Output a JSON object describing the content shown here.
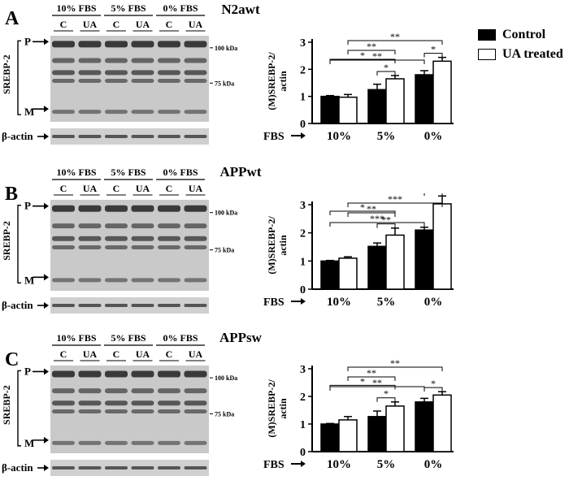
{
  "legend": {
    "items": [
      {
        "label": "Control",
        "color": "#000000"
      },
      {
        "label": "UA treated",
        "color": "#ffffff"
      }
    ]
  },
  "panels": [
    {
      "letter": "A",
      "title": "N2awt",
      "blot": {
        "conditions": [
          "10% FBS",
          "5% FBS",
          "0% FBS"
        ],
        "lanes": [
          "C",
          "UA",
          "C",
          "UA",
          "C",
          "UA"
        ],
        "protein_label": "SREBP-2",
        "band_p": "P",
        "band_m": "M",
        "marker_100": "100 kDa",
        "marker_75": "75 kDa",
        "loading_label": "β-actin"
      },
      "chart": {
        "ylabel_line1": "(M)SREBP-2/",
        "ylabel_line2": "actin",
        "xaxis_label": "FBS",
        "yticks": [
          "0",
          "1",
          "2",
          "3"
        ]
      }
    },
    {
      "letter": "B",
      "title": "APPwt",
      "blot": {
        "conditions": [
          "10% FBS",
          "5% FBS",
          "0% FBS"
        ],
        "lanes": [
          "C",
          "UA",
          "C",
          "UA",
          "C",
          "UA"
        ],
        "protein_label": "SREBP-2",
        "band_p": "P",
        "band_m": "M",
        "marker_100": "100 kDa",
        "marker_75": "75 kDa",
        "loading_label": "β-actin"
      },
      "chart": {
        "ylabel_line1": "(M)SREBP-2/",
        "ylabel_line2": "actin",
        "xaxis_label": "FBS",
        "yticks": [
          "0",
          "1",
          "2",
          "3"
        ]
      }
    },
    {
      "letter": "C",
      "title": "APPsw",
      "blot": {
        "conditions": [
          "10% FBS",
          "5% FBS",
          "0% FBS"
        ],
        "lanes": [
          "C",
          "UA",
          "C",
          "UA",
          "C",
          "UA"
        ],
        "protein_label": "SREBP-2",
        "band_p": "P",
        "band_m": "M",
        "marker_100": "100 kDa",
        "marker_75": "75 kDa",
        "loading_label": "β-actin"
      },
      "chart": {
        "ylabel_line1": "(M)SREBP-2/",
        "ylabel_line2": "actin",
        "xaxis_label": "FBS",
        "yticks": [
          "0",
          "1",
          "2",
          "3"
        ]
      }
    }
  ],
  "chart_data": [
    {
      "type": "bar",
      "title": "N2awt",
      "xlabel": "FBS",
      "ylabel": "(M)SREBP-2/ actin",
      "categories": [
        "10%",
        "5%",
        "0%"
      ],
      "ylim": [
        0,
        3
      ],
      "series": [
        {
          "name": "Control",
          "values": [
            1.0,
            1.25,
            1.8
          ],
          "errors": [
            0.03,
            0.2,
            0.15
          ]
        },
        {
          "name": "UA treated",
          "values": [
            0.97,
            1.65,
            2.3
          ],
          "errors": [
            0.1,
            0.12,
            0.14
          ]
        }
      ],
      "significance": [
        {
          "label": "*",
          "from": [
            0,
            0
          ],
          "to": [
            1,
            1
          ]
        },
        {
          "label": "*",
          "from": [
            1,
            0
          ],
          "to": [
            1,
            1
          ]
        },
        {
          "label": "*",
          "from": [
            2,
            0
          ],
          "to": [
            2,
            1
          ]
        },
        {
          "label": "**",
          "from": [
            0,
            0
          ],
          "to": [
            2,
            0
          ]
        },
        {
          "label": "**",
          "from": [
            0,
            1
          ],
          "to": [
            1,
            1
          ]
        },
        {
          "label": "**",
          "from": [
            0,
            1
          ],
          "to": [
            2,
            1
          ]
        }
      ]
    },
    {
      "type": "bar",
      "title": "APPwt",
      "xlabel": "FBS",
      "ylabel": "(M)SREBP-2/ actin",
      "categories": [
        "10%",
        "5%",
        "0%"
      ],
      "ylim": [
        0,
        3
      ],
      "series": [
        {
          "name": "Control",
          "values": [
            1.0,
            1.52,
            2.1
          ],
          "errors": [
            0.02,
            0.12,
            0.1
          ]
        },
        {
          "name": "UA treated",
          "values": [
            1.1,
            1.92,
            3.03
          ],
          "errors": [
            0.05,
            0.25,
            0.28
          ]
        }
      ],
      "significance": [
        {
          "label": "*",
          "from": [
            0,
            0
          ],
          "to": [
            1,
            1
          ]
        },
        {
          "label": "**",
          "from": [
            1,
            0
          ],
          "to": [
            1,
            1
          ]
        },
        {
          "label": "***",
          "from": [
            2,
            0
          ],
          "to": [
            2,
            1
          ]
        },
        {
          "label": "***",
          "from": [
            0,
            0
          ],
          "to": [
            2,
            0
          ]
        },
        {
          "label": "**",
          "from": [
            0,
            1
          ],
          "to": [
            1,
            1
          ]
        },
        {
          "label": "***",
          "from": [
            0,
            1
          ],
          "to": [
            2,
            1
          ]
        }
      ]
    },
    {
      "type": "bar",
      "title": "APPsw",
      "xlabel": "FBS",
      "ylabel": "(M)SREBP-2/ actin",
      "categories": [
        "10%",
        "5%",
        "0%"
      ],
      "ylim": [
        0,
        3
      ],
      "series": [
        {
          "name": "Control",
          "values": [
            1.0,
            1.27,
            1.8
          ],
          "errors": [
            0.02,
            0.2,
            0.13
          ]
        },
        {
          "name": "UA treated",
          "values": [
            1.15,
            1.65,
            2.05
          ],
          "errors": [
            0.12,
            0.15,
            0.12
          ]
        }
      ],
      "significance": [
        {
          "label": "*",
          "from": [
            0,
            0
          ],
          "to": [
            1,
            1
          ]
        },
        {
          "label": "*",
          "from": [
            1,
            0
          ],
          "to": [
            1,
            1
          ]
        },
        {
          "label": "*",
          "from": [
            2,
            0
          ],
          "to": [
            2,
            1
          ]
        },
        {
          "label": "**",
          "from": [
            0,
            0
          ],
          "to": [
            2,
            0
          ]
        },
        {
          "label": "**",
          "from": [
            0,
            1
          ],
          "to": [
            1,
            1
          ]
        },
        {
          "label": "**",
          "from": [
            0,
            1
          ],
          "to": [
            2,
            1
          ]
        }
      ]
    }
  ]
}
